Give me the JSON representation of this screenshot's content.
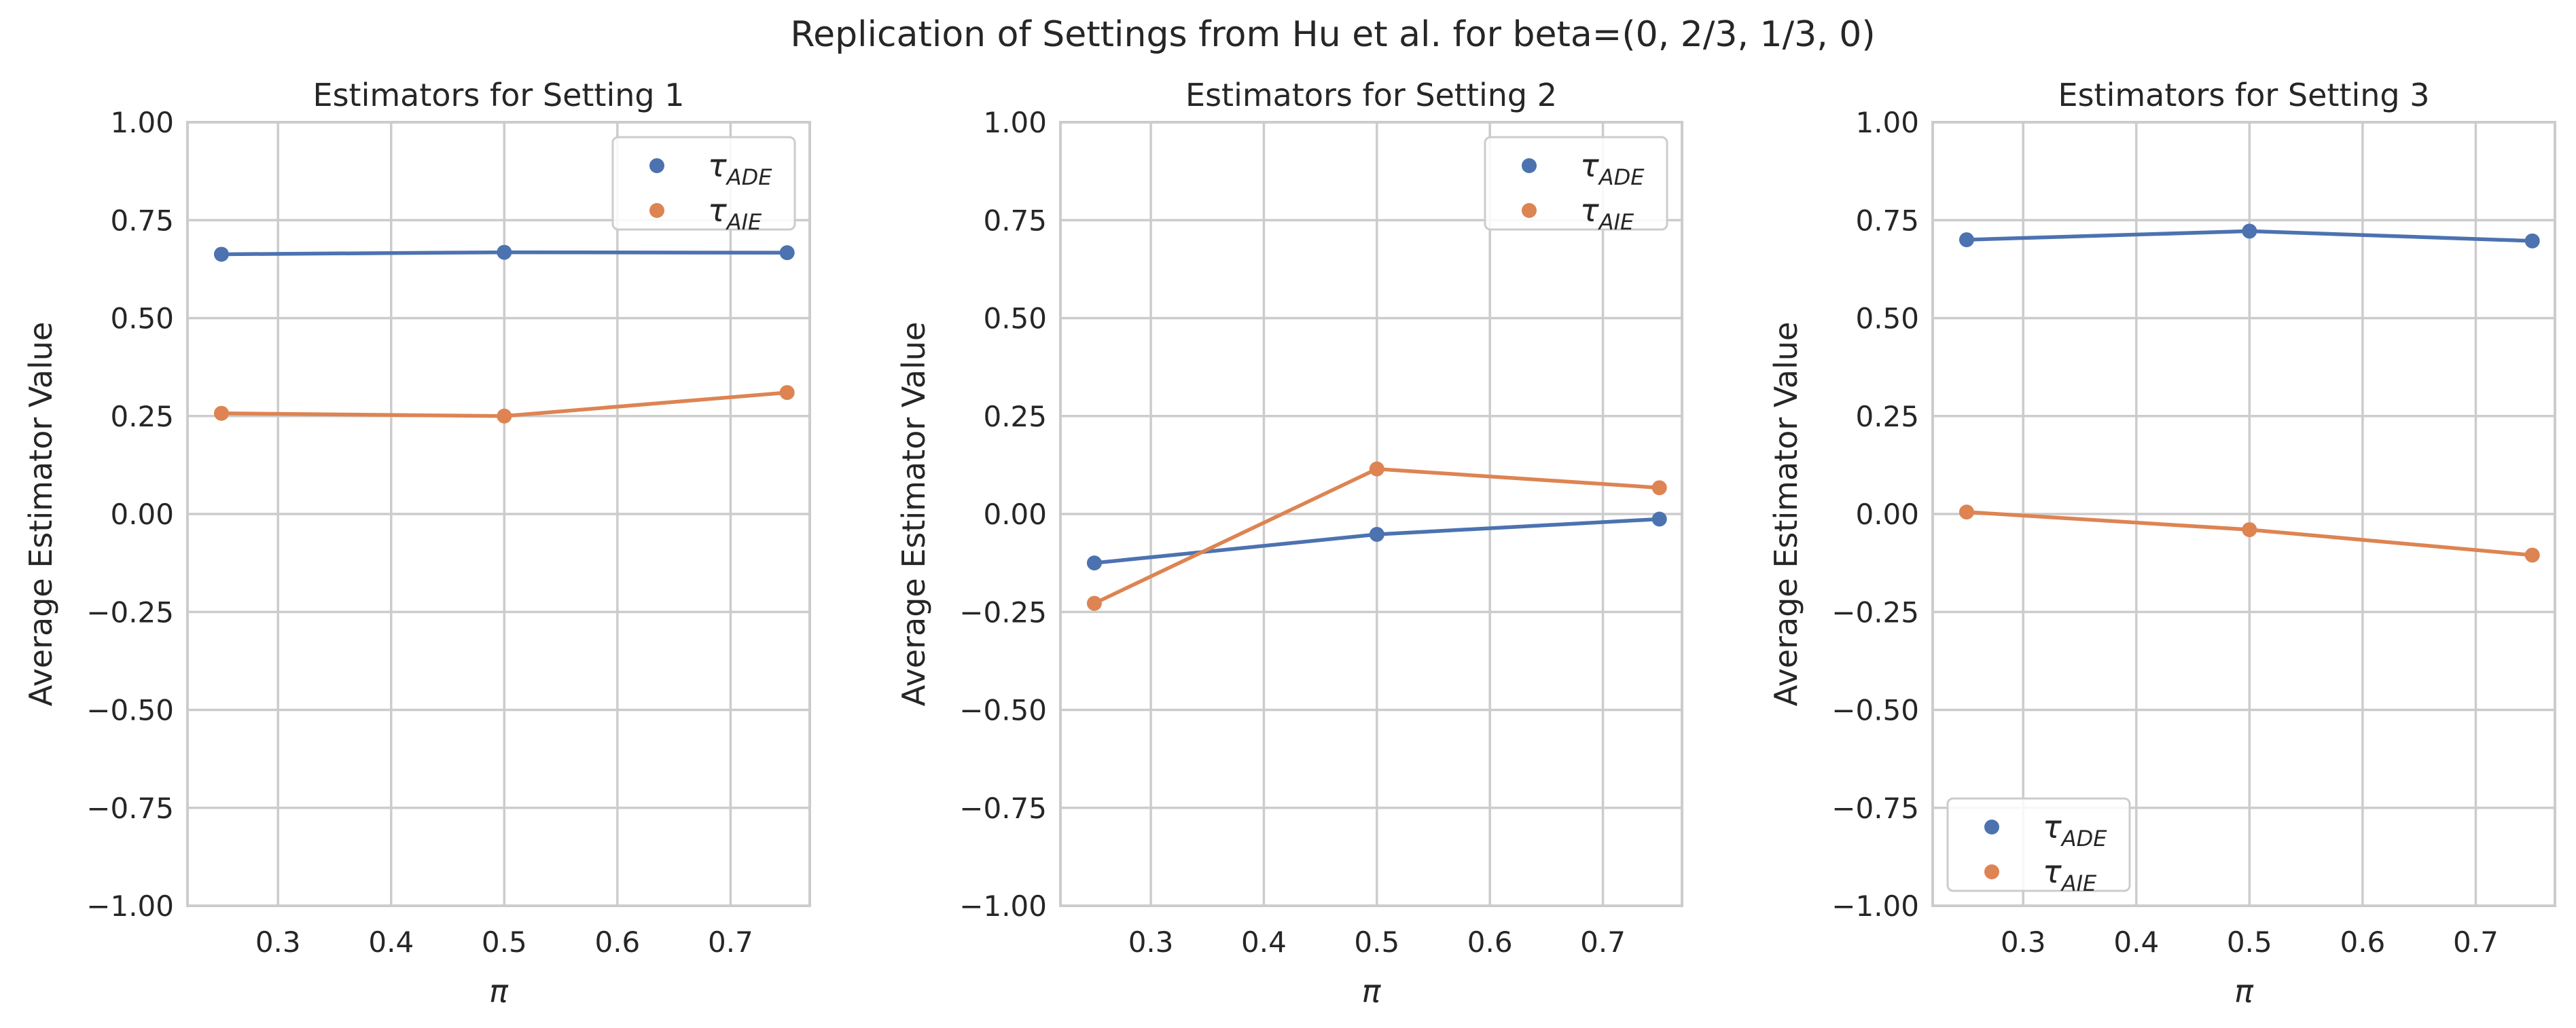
{
  "figure": {
    "suptitle": "Replication of Settings from Hu et al. for beta=(0, 2/3, 1/3, 0)"
  },
  "colors": {
    "ade": "#4c72b0",
    "aie": "#dd8452",
    "grid": "#cccccc",
    "spine": "#cccccc",
    "background": "#ffffff"
  },
  "chart_data": [
    {
      "type": "line",
      "title": "Estimators for Setting 1",
      "xlabel": "π",
      "ylabel": "Average Estimator Value",
      "x": [
        0.25,
        0.5,
        0.75
      ],
      "xlim": [
        0.22,
        0.77
      ],
      "ylim": [
        -1.0,
        1.0
      ],
      "xticks": [
        0.3,
        0.4,
        0.5,
        0.6,
        0.7
      ],
      "xtick_labels": [
        "0.3",
        "0.4",
        "0.5",
        "0.6",
        "0.7"
      ],
      "yticks": [
        -1.0,
        -0.75,
        -0.5,
        -0.25,
        0.0,
        0.25,
        0.5,
        0.75,
        1.0
      ],
      "ytick_labels": [
        "−1.00",
        "−0.75",
        "−0.50",
        "−0.25",
        "0.00",
        "0.25",
        "0.50",
        "0.75",
        "1.00"
      ],
      "grid": true,
      "legend": "upper-right",
      "series": [
        {
          "name": "τ",
          "sub": "ADE",
          "color": "#4c72b0",
          "values": [
            0.663,
            0.668,
            0.667
          ]
        },
        {
          "name": "τ",
          "sub": "AIE",
          "color": "#dd8452",
          "values": [
            0.257,
            0.25,
            0.31
          ]
        }
      ]
    },
    {
      "type": "line",
      "title": "Estimators for Setting 2",
      "xlabel": "π",
      "ylabel": "Average Estimator Value",
      "x": [
        0.25,
        0.5,
        0.75
      ],
      "xlim": [
        0.22,
        0.77
      ],
      "ylim": [
        -1.0,
        1.0
      ],
      "xticks": [
        0.3,
        0.4,
        0.5,
        0.6,
        0.7
      ],
      "xtick_labels": [
        "0.3",
        "0.4",
        "0.5",
        "0.6",
        "0.7"
      ],
      "yticks": [
        -1.0,
        -0.75,
        -0.5,
        -0.25,
        0.0,
        0.25,
        0.5,
        0.75,
        1.0
      ],
      "ytick_labels": [
        "−1.00",
        "−0.75",
        "−0.50",
        "−0.25",
        "0.00",
        "0.25",
        "0.50",
        "0.75",
        "1.00"
      ],
      "grid": true,
      "legend": "upper-right",
      "series": [
        {
          "name": "τ",
          "sub": "ADE",
          "color": "#4c72b0",
          "values": [
            -0.125,
            -0.052,
            -0.013
          ]
        },
        {
          "name": "τ",
          "sub": "AIE",
          "color": "#dd8452",
          "values": [
            -0.228,
            0.115,
            0.067
          ]
        }
      ]
    },
    {
      "type": "line",
      "title": "Estimators for Setting 3",
      "xlabel": "π",
      "ylabel": "Average Estimator Value",
      "x": [
        0.25,
        0.5,
        0.75
      ],
      "xlim": [
        0.22,
        0.77
      ],
      "ylim": [
        -1.0,
        1.0
      ],
      "xticks": [
        0.3,
        0.4,
        0.5,
        0.6,
        0.7
      ],
      "xtick_labels": [
        "0.3",
        "0.4",
        "0.5",
        "0.6",
        "0.7"
      ],
      "yticks": [
        -1.0,
        -0.75,
        -0.5,
        -0.25,
        0.0,
        0.25,
        0.5,
        0.75,
        1.0
      ],
      "ytick_labels": [
        "−1.00",
        "−0.75",
        "−0.50",
        "−0.25",
        "0.00",
        "0.25",
        "0.50",
        "0.75",
        "1.00"
      ],
      "grid": true,
      "legend": "lower-left",
      "series": [
        {
          "name": "τ",
          "sub": "ADE",
          "color": "#4c72b0",
          "values": [
            0.7,
            0.722,
            0.697
          ]
        },
        {
          "name": "τ",
          "sub": "AIE",
          "color": "#dd8452",
          "values": [
            0.005,
            -0.04,
            -0.105
          ]
        }
      ]
    }
  ]
}
